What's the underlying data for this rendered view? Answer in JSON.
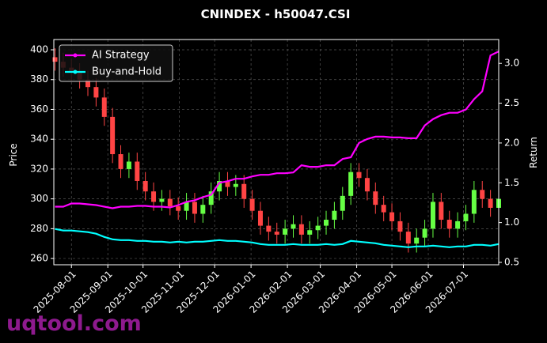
{
  "chart_data": {
    "type": "candlestick",
    "title": "CNINDEX - h50047.CSI",
    "ylabel": "Price",
    "y2label": "Return",
    "watermark": "uqtool.com",
    "x": [
      "2025-07-18",
      "2025-07-25",
      "2025-08-01",
      "2025-08-08",
      "2025-08-15",
      "2025-08-22",
      "2025-08-29",
      "2025-09-05",
      "2025-09-12",
      "2025-09-19",
      "2025-09-26",
      "2025-10-03",
      "2025-10-10",
      "2025-10-17",
      "2025-10-24",
      "2025-10-31",
      "2025-11-07",
      "2025-11-14",
      "2025-11-21",
      "2025-11-28",
      "2025-12-05",
      "2025-12-12",
      "2025-12-19",
      "2025-12-26",
      "2026-01-02",
      "2026-01-09",
      "2026-01-16",
      "2026-01-23",
      "2026-01-30",
      "2026-02-06",
      "2026-02-13",
      "2026-02-20",
      "2026-02-27",
      "2026-03-06",
      "2026-03-13",
      "2026-03-20",
      "2026-03-27",
      "2026-04-03",
      "2026-04-10",
      "2026-04-17",
      "2026-04-24",
      "2026-05-01",
      "2026-05-08",
      "2026-05-15",
      "2026-05-22",
      "2026-05-29",
      "2026-06-05",
      "2026-06-12",
      "2026-06-19",
      "2026-06-26",
      "2026-07-03",
      "2026-07-10",
      "2026-07-17",
      "2026-07-24",
      "2026-07-31"
    ],
    "open": [
      395,
      392,
      388,
      385,
      380,
      375,
      368,
      355,
      330,
      320,
      325,
      312,
      305,
      298,
      300,
      295,
      292,
      298,
      290,
      296,
      305,
      312,
      308,
      310,
      300,
      292,
      282,
      278,
      276,
      280,
      283,
      276,
      279,
      282,
      286,
      292,
      302,
      318,
      314,
      305,
      296,
      291,
      285,
      278,
      270,
      274,
      280,
      298,
      286,
      280,
      285,
      290,
      306,
      300,
      294
    ],
    "high": [
      401,
      398,
      394,
      391,
      386,
      381,
      374,
      361,
      336,
      331,
      331,
      318,
      311,
      306,
      306,
      301,
      304,
      304,
      302,
      311,
      318,
      318,
      316,
      316,
      306,
      298,
      288,
      284,
      286,
      289,
      289,
      285,
      288,
      292,
      298,
      308,
      324,
      324,
      320,
      311,
      302,
      297,
      291,
      284,
      280,
      286,
      304,
      304,
      292,
      291,
      296,
      312,
      312,
      306,
      306
    ],
    "low": [
      386,
      382,
      379,
      374,
      369,
      362,
      349,
      324,
      314,
      314,
      306,
      299,
      292,
      292,
      289,
      286,
      286,
      284,
      284,
      290,
      299,
      302,
      302,
      294,
      286,
      276,
      272,
      270,
      270,
      274,
      270,
      270,
      273,
      276,
      280,
      286,
      296,
      308,
      299,
      290,
      285,
      279,
      272,
      264,
      264,
      268,
      274,
      280,
      274,
      274,
      279,
      284,
      294,
      288,
      288
    ],
    "close": [
      392,
      388,
      385,
      380,
      375,
      368,
      355,
      330,
      320,
      325,
      312,
      305,
      298,
      300,
      295,
      292,
      298,
      290,
      296,
      305,
      312,
      308,
      310,
      300,
      292,
      282,
      278,
      276,
      280,
      283,
      276,
      279,
      282,
      286,
      292,
      302,
      318,
      314,
      305,
      296,
      291,
      285,
      278,
      270,
      274,
      280,
      298,
      286,
      280,
      285,
      290,
      306,
      300,
      294,
      300
    ],
    "up_color": "#66ff44",
    "down_color": "#ff4444",
    "series": [
      {
        "name": "AI Strategy",
        "color": "#ff00ff",
        "axis": "y2",
        "values": [
          1.2,
          1.2,
          1.24,
          1.24,
          1.23,
          1.22,
          1.2,
          1.18,
          1.2,
          1.2,
          1.21,
          1.21,
          1.2,
          1.2,
          1.19,
          1.22,
          1.26,
          1.28,
          1.32,
          1.35,
          1.5,
          1.52,
          1.55,
          1.55,
          1.58,
          1.6,
          1.6,
          1.62,
          1.62,
          1.63,
          1.72,
          1.7,
          1.7,
          1.72,
          1.72,
          1.8,
          1.82,
          2.0,
          2.05,
          2.08,
          2.08,
          2.07,
          2.07,
          2.06,
          2.06,
          2.22,
          2.3,
          2.35,
          2.38,
          2.38,
          2.42,
          2.55,
          2.65,
          3.1,
          3.15
        ]
      },
      {
        "name": "Buy-and-Hold",
        "color": "#00ffff",
        "axis": "y2",
        "values": [
          0.92,
          0.9,
          0.9,
          0.89,
          0.88,
          0.86,
          0.82,
          0.79,
          0.78,
          0.78,
          0.77,
          0.77,
          0.76,
          0.76,
          0.75,
          0.76,
          0.75,
          0.76,
          0.76,
          0.77,
          0.78,
          0.77,
          0.77,
          0.76,
          0.75,
          0.73,
          0.72,
          0.72,
          0.72,
          0.73,
          0.72,
          0.72,
          0.72,
          0.73,
          0.72,
          0.73,
          0.77,
          0.76,
          0.75,
          0.74,
          0.72,
          0.71,
          0.7,
          0.69,
          0.7,
          0.7,
          0.71,
          0.7,
          0.69,
          0.7,
          0.7,
          0.72,
          0.72,
          0.71,
          0.73
        ]
      }
    ],
    "xlim": [
      "2025-07-17",
      "2026-07-31"
    ],
    "xticks": [
      "2025-08-01",
      "2025-09-01",
      "2025-10-01",
      "2025-11-01",
      "2025-12-01",
      "2026-01-01",
      "2026-02-01",
      "2026-03-01",
      "2026-04-01",
      "2026-05-01",
      "2026-06-01",
      "2026-07-01"
    ],
    "ylim": [
      255.8,
      406.9
    ],
    "yticks": [
      260,
      280,
      300,
      320,
      340,
      360,
      380,
      400
    ],
    "y2lim": [
      0.47,
      3.3
    ],
    "y2ticks": [
      0.5,
      {
        "value": 1,
        "label": "1.0"
      },
      1.5,
      {
        "value": 2,
        "label": "2.0"
      },
      2.5,
      {
        "value": 3,
        "label": "3.0"
      }
    ],
    "grid": true,
    "legend": "upper left"
  }
}
